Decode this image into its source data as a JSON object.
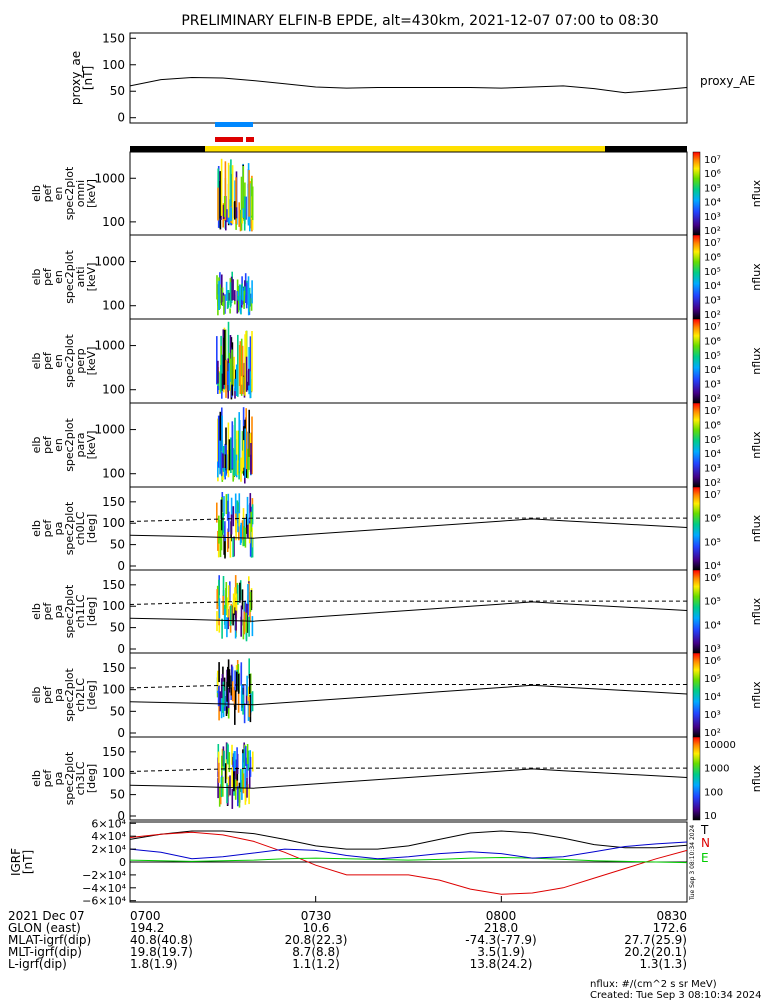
{
  "title": "PRELIMINARY ELFIN-B EPDE, alt=430km, 2021-12-07 07:00 to 08:30",
  "panels": [
    {
      "id": "proxy_ae",
      "ylabel": [
        "proxy_ae",
        "[nT]"
      ],
      "yticks": [
        "150",
        "100",
        "50",
        "0"
      ],
      "legend": "proxy_AE"
    },
    {
      "id": "omni",
      "ylabel": [
        "elb",
        "pef",
        "en",
        "spec2plot",
        "omni",
        "[keV]"
      ],
      "yticks": [
        "1000",
        "100"
      ],
      "cbar": [
        "10⁷",
        "10⁶",
        "10⁵",
        "10⁴",
        "10³",
        "10²"
      ],
      "cbar_label": "nflux"
    },
    {
      "id": "anti",
      "ylabel": [
        "elb",
        "pef",
        "en",
        "spec2plot",
        "anti",
        "[keV]"
      ],
      "yticks": [
        "1000",
        "100"
      ],
      "cbar": [
        "10⁷",
        "10⁶",
        "10⁵",
        "10⁴",
        "10³",
        "10²"
      ],
      "cbar_label": "nflux"
    },
    {
      "id": "perp",
      "ylabel": [
        "elb",
        "pef",
        "en",
        "spec2plot",
        "perp",
        "[keV]"
      ],
      "yticks": [
        "1000",
        "100"
      ],
      "cbar": [
        "10⁷",
        "10⁶",
        "10⁵",
        "10⁴",
        "10³",
        "10²"
      ],
      "cbar_label": "nflux"
    },
    {
      "id": "para",
      "ylabel": [
        "elb",
        "pef",
        "en",
        "spec2plot",
        "para",
        "[keV]"
      ],
      "yticks": [
        "1000",
        "100"
      ],
      "cbar": [
        "10⁷",
        "10⁶",
        "10⁵",
        "10⁴",
        "10³",
        "10²"
      ],
      "cbar_label": "nflux"
    },
    {
      "id": "ch0LC",
      "ylabel": [
        "elb",
        "pef",
        "pa",
        "spec2plot",
        "ch0LC",
        "[deg]"
      ],
      "yticks": [
        "150",
        "100",
        "50",
        "0"
      ],
      "cbar": [
        "10⁷",
        "10⁶",
        "10⁵",
        "10⁴"
      ],
      "cbar_label": "nflux"
    },
    {
      "id": "ch1LC",
      "ylabel": [
        "elb",
        "pef",
        "pa",
        "spec2plot",
        "ch1LC",
        "[deg]"
      ],
      "yticks": [
        "150",
        "100",
        "50",
        "0"
      ],
      "cbar": [
        "10⁶",
        "10⁵",
        "10⁴",
        "10³"
      ],
      "cbar_label": "nflux"
    },
    {
      "id": "ch2LC",
      "ylabel": [
        "elb",
        "pef",
        "pa",
        "spec2plot",
        "ch2LC",
        "[deg]"
      ],
      "yticks": [
        "150",
        "100",
        "50",
        "0"
      ],
      "cbar": [
        "10⁶",
        "10⁵",
        "10⁴",
        "10³",
        "10²"
      ],
      "cbar_label": "nflux"
    },
    {
      "id": "ch3LC",
      "ylabel": [
        "elb",
        "pef",
        "pa",
        "spec2plot",
        "ch3LC",
        "[deg]"
      ],
      "yticks": [
        "150",
        "100",
        "50",
        "0"
      ],
      "cbar": [
        "10000",
        "1000",
        "100",
        "10"
      ],
      "cbar_label": "nflux"
    },
    {
      "id": "igrf",
      "ylabel": [
        "IGRF",
        "[nT]"
      ],
      "yticks": [
        "6×10⁴",
        "4×10⁴",
        "2×10⁴",
        "0",
        "−2×10⁴",
        "−4×10⁴",
        "−6×10⁴"
      ],
      "legend": [
        "T",
        "N",
        "E"
      ]
    }
  ],
  "legend_colors": {
    "T": "#000000",
    "N": "#dd0000",
    "E": "#00cc00",
    "blue_curve": "#0000cc"
  },
  "colorbar_colors": [
    "#ff0000",
    "#ff8800",
    "#ffee00",
    "#66dd00",
    "#00cc88",
    "#00aaff",
    "#2244ff",
    "#440088",
    "#000000"
  ],
  "footer": {
    "rows": [
      {
        "label": "2021 Dec 07",
        "values": [
          "0700",
          "0730",
          "0800",
          "0830"
        ]
      },
      {
        "label": "GLON (east)",
        "values": [
          "194.2",
          "10.6",
          "218.0",
          "172.6"
        ]
      },
      {
        "label": "MLAT-igrf(dip)",
        "values": [
          "40.8(40.8)",
          "20.8(22.3)",
          "-74.3(-77.9)",
          "27.7(25.9)"
        ]
      },
      {
        "label": "MLT-igrf(dip)",
        "values": [
          "19.8(19.7)",
          "8.7(8.8)",
          "3.5(1.9)",
          "20.2(20.1)"
        ]
      },
      {
        "label": "L-igrf(dip)",
        "values": [
          "1.8(1.9)",
          "1.1(1.2)",
          "13.8(24.2)",
          "1.3(1.3)"
        ]
      }
    ],
    "units_note": "nflux: #/(cm^2 s sr MeV)",
    "created": "Created: Tue Sep  3 08:10:34 2024",
    "side_stamp": "Tue Sep  3 08:10:34 2024"
  },
  "chart_data": [
    {
      "type": "line",
      "title": "PRELIMINARY ELFIN-B EPDE, alt=430km, 2021-12-07 07:00 to 08:30",
      "panel": "proxy_ae",
      "ylim": [
        0,
        150
      ],
      "x": [
        "07:00",
        "07:05",
        "07:10",
        "07:15",
        "07:20",
        "07:25",
        "07:30",
        "07:35",
        "07:40",
        "07:45",
        "07:50",
        "07:55",
        "08:00",
        "08:05",
        "08:10",
        "08:15",
        "08:20",
        "08:25",
        "08:30"
      ],
      "series": [
        {
          "name": "proxy_AE",
          "values": [
            60,
            72,
            76,
            75,
            70,
            64,
            58,
            56,
            57,
            57,
            57,
            57,
            56,
            58,
            60,
            55,
            47,
            52,
            57
          ]
        }
      ]
    },
    {
      "type": "heatmap",
      "panel": "ch0LC",
      "ylim": [
        0,
        180
      ],
      "series": [
        {
          "name": "line_solid",
          "x": [
            "07:00",
            "07:10",
            "07:20",
            "07:30",
            "07:40",
            "07:50",
            "08:00",
            "08:05",
            "08:10",
            "08:20",
            "08:30"
          ],
          "values": [
            72,
            69,
            65,
            75,
            85,
            95,
            105,
            110,
            106,
            98,
            90
          ]
        },
        {
          "name": "line_dashed",
          "x": [
            "07:00",
            "07:10",
            "07:20",
            "07:30",
            "07:40",
            "07:50",
            "08:00",
            "08:05",
            "08:10",
            "08:20",
            "08:30"
          ],
          "values": [
            104,
            108,
            112,
            112,
            112,
            112,
            112,
            112,
            112,
            112,
            112
          ]
        }
      ]
    },
    {
      "type": "line",
      "panel": "igrf",
      "ylim": [
        -60000,
        60000
      ],
      "x": [
        "07:00",
        "07:05",
        "07:10",
        "07:15",
        "07:20",
        "07:25",
        "07:30",
        "07:35",
        "07:40",
        "07:45",
        "07:50",
        "07:55",
        "08:00",
        "08:05",
        "08:10",
        "08:15",
        "08:20",
        "08:25",
        "08:30"
      ],
      "series": [
        {
          "name": "T",
          "values": [
            35000,
            43000,
            48000,
            48000,
            44000,
            35000,
            25000,
            20000,
            20000,
            25000,
            35000,
            45000,
            48000,
            45000,
            37000,
            27000,
            22000,
            22000,
            26000
          ]
        },
        {
          "name": "N",
          "values": [
            38000,
            43000,
            46000,
            42000,
            32000,
            15000,
            -5000,
            -20000,
            -20000,
            -20000,
            -28000,
            -42000,
            -50000,
            -48000,
            -40000,
            -25000,
            -10000,
            5000,
            18000
          ]
        },
        {
          "name": "E",
          "values": [
            3000,
            2000,
            1000,
            2000,
            3000,
            5000,
            6000,
            5000,
            4000,
            3000,
            4000,
            6000,
            7000,
            6000,
            4000,
            2000,
            1000,
            0,
            -1000
          ]
        },
        {
          "name": "blue_curve",
          "values": [
            20000,
            15000,
            5000,
            8000,
            14000,
            20000,
            18000,
            10000,
            5000,
            8000,
            13000,
            16000,
            13000,
            6000,
            8000,
            16000,
            24000,
            28000,
            31000
          ]
        }
      ]
    }
  ]
}
